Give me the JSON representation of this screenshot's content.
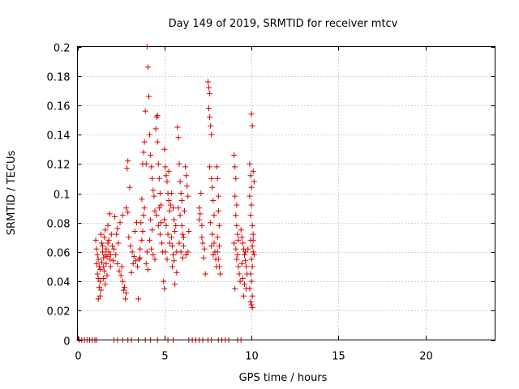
{
  "chart_data": {
    "type": "scatter",
    "title": "Day 149 of 2019, SRMTID for receiver mtcv",
    "xlabel": "GPS time / hours",
    "ylabel": "SRMTID / TECUs",
    "xlim": [
      0,
      24
    ],
    "ylim": [
      0,
      0.2
    ],
    "x_ticks": [
      0,
      5,
      10,
      15,
      20
    ],
    "x_tick_labels": [
      "0",
      "5",
      "10",
      "15",
      "20"
    ],
    "y_ticks": [
      0,
      0.02,
      0.04,
      0.06,
      0.08,
      0.1,
      0.12,
      0.14,
      0.16,
      0.18,
      0.2
    ],
    "y_tick_labels": [
      "0",
      "0.02",
      "0.04",
      "0.06",
      "0.08",
      "0.1",
      "0.12",
      "0.14",
      "0.16",
      "0.18",
      "0.2"
    ],
    "grid": true,
    "marker": "plus",
    "color": "#dd0000",
    "series": [
      {
        "name": "SRMTID",
        "points": [
          [
            0.1,
            0
          ],
          [
            0.25,
            0
          ],
          [
            0.4,
            0
          ],
          [
            0.55,
            0
          ],
          [
            0.7,
            0
          ],
          [
            0.85,
            0
          ],
          [
            1.0,
            0
          ],
          [
            1.1,
            0
          ],
          [
            2.1,
            0
          ],
          [
            2.3,
            0
          ],
          [
            2.6,
            0
          ],
          [
            2.9,
            0
          ],
          [
            3.1,
            0
          ],
          [
            3.5,
            0
          ],
          [
            3.9,
            0
          ],
          [
            4.2,
            0
          ],
          [
            4.6,
            0
          ],
          [
            5.2,
            0
          ],
          [
            5.5,
            0
          ],
          [
            6.4,
            0
          ],
          [
            6.6,
            0
          ],
          [
            6.8,
            0
          ],
          [
            7.0,
            0
          ],
          [
            7.2,
            0
          ],
          [
            7.5,
            0
          ],
          [
            7.7,
            0
          ],
          [
            8.1,
            0
          ],
          [
            8.3,
            0
          ],
          [
            8.5,
            0
          ],
          [
            8.7,
            0
          ],
          [
            9.2,
            0
          ],
          [
            9.4,
            0
          ],
          [
            1.05,
            0.068
          ],
          [
            1.1,
            0.062
          ],
          [
            1.15,
            0.058
          ],
          [
            1.2,
            0.055
          ],
          [
            1.1,
            0.052
          ],
          [
            1.25,
            0.05
          ],
          [
            1.3,
            0.048
          ],
          [
            1.15,
            0.045
          ],
          [
            1.2,
            0.042
          ],
          [
            1.3,
            0.04
          ],
          [
            1.25,
            0.036
          ],
          [
            1.3,
            0.03
          ],
          [
            1.2,
            0.028
          ],
          [
            1.35,
            0.034
          ],
          [
            1.35,
            0.072
          ],
          [
            1.4,
            0.066
          ],
          [
            1.45,
            0.06
          ],
          [
            1.5,
            0.056
          ],
          [
            1.4,
            0.053
          ],
          [
            1.5,
            0.05
          ],
          [
            1.55,
            0.047
          ],
          [
            1.6,
            0.058
          ],
          [
            1.45,
            0.064
          ],
          [
            1.55,
            0.07
          ],
          [
            1.6,
            0.075
          ],
          [
            1.65,
            0.062
          ],
          [
            1.7,
            0.057
          ],
          [
            1.65,
            0.052
          ],
          [
            1.75,
            0.066
          ],
          [
            1.8,
            0.06
          ],
          [
            1.85,
            0.055
          ],
          [
            1.9,
            0.05
          ],
          [
            1.8,
            0.068
          ],
          [
            1.95,
            0.072
          ],
          [
            2.0,
            0.064
          ],
          [
            1.9,
            0.058
          ],
          [
            2.05,
            0.054
          ],
          [
            1.75,
            0.078
          ],
          [
            1.85,
            0.086
          ],
          [
            1.7,
            0.044
          ],
          [
            1.6,
            0.038
          ],
          [
            1.5,
            0.042
          ],
          [
            2.1,
            0.062
          ],
          [
            2.2,
            0.058
          ],
          [
            2.3,
            0.052
          ],
          [
            2.4,
            0.047
          ],
          [
            2.5,
            0.044
          ],
          [
            2.6,
            0.04
          ],
          [
            2.7,
            0.036
          ],
          [
            2.8,
            0.032
          ],
          [
            2.75,
            0.028
          ],
          [
            2.65,
            0.034
          ],
          [
            2.55,
            0.05
          ],
          [
            2.35,
            0.066
          ],
          [
            2.25,
            0.072
          ],
          [
            2.45,
            0.08
          ],
          [
            2.6,
            0.085
          ],
          [
            2.8,
            0.09
          ],
          [
            2.9,
            0.087
          ],
          [
            2.3,
            0.076
          ],
          [
            2.15,
            0.084
          ],
          [
            2.9,
            0.122
          ],
          [
            2.85,
            0.117
          ],
          [
            3.0,
            0.104
          ],
          [
            2.95,
            0.07
          ],
          [
            3.05,
            0.064
          ],
          [
            3.15,
            0.06
          ],
          [
            3.25,
            0.057
          ],
          [
            3.35,
            0.054
          ],
          [
            3.45,
            0.05
          ],
          [
            3.1,
            0.046
          ],
          [
            3.2,
            0.052
          ],
          [
            3.3,
            0.074
          ],
          [
            3.4,
            0.08
          ],
          [
            3.5,
            0.028
          ],
          [
            3.55,
            0.055
          ],
          [
            3.6,
            0.062
          ],
          [
            3.7,
            0.068
          ],
          [
            3.75,
            0.074
          ],
          [
            3.65,
            0.08
          ],
          [
            3.8,
            0.085
          ],
          [
            3.85,
            0.09
          ],
          [
            3.7,
            0.096
          ],
          [
            3.75,
            0.12
          ],
          [
            3.8,
            0.128
          ],
          [
            3.85,
            0.135
          ],
          [
            3.9,
            0.156
          ],
          [
            3.95,
            0.12
          ],
          [
            4.0,
            0.06
          ],
          [
            3.95,
            0.052
          ],
          [
            4.05,
            0.048
          ],
          [
            3.6,
            0.056
          ],
          [
            4.0,
            0.2
          ],
          [
            4.05,
            0.186
          ],
          [
            4.1,
            0.166
          ],
          [
            4.15,
            0.14
          ],
          [
            4.2,
            0.126
          ],
          [
            4.25,
            0.118
          ],
          [
            4.3,
            0.11
          ],
          [
            4.35,
            0.102
          ],
          [
            4.4,
            0.098
          ],
          [
            4.45,
            0.088
          ],
          [
            4.2,
            0.082
          ],
          [
            4.3,
            0.075
          ],
          [
            4.15,
            0.068
          ],
          [
            4.25,
            0.062
          ],
          [
            4.35,
            0.058
          ],
          [
            4.45,
            0.055
          ],
          [
            4.5,
            0.144
          ],
          [
            4.55,
            0.152
          ],
          [
            4.6,
            0.135
          ],
          [
            4.65,
            0.12
          ],
          [
            4.7,
            0.11
          ],
          [
            4.75,
            0.1
          ],
          [
            4.8,
            0.092
          ],
          [
            4.55,
            0.085
          ],
          [
            4.65,
            0.078
          ],
          [
            4.75,
            0.072
          ],
          [
            4.85,
            0.066
          ],
          [
            4.9,
            0.06
          ],
          [
            4.6,
            0.153
          ],
          [
            4.8,
            0.08
          ],
          [
            4.7,
            0.09
          ],
          [
            5.0,
            0.13
          ],
          [
            5.05,
            0.118
          ],
          [
            5.1,
            0.112
          ],
          [
            5.15,
            0.108
          ],
          [
            5.2,
            0.1
          ],
          [
            5.25,
            0.095
          ],
          [
            5.3,
            0.088
          ],
          [
            5.0,
            0.082
          ],
          [
            5.1,
            0.078
          ],
          [
            5.2,
            0.072
          ],
          [
            5.3,
            0.066
          ],
          [
            5.05,
            0.06
          ],
          [
            5.15,
            0.055
          ],
          [
            4.95,
            0.04
          ],
          [
            5.0,
            0.035
          ],
          [
            5.25,
            0.115
          ],
          [
            5.35,
            0.092
          ],
          [
            5.4,
            0.07
          ],
          [
            5.45,
            0.064
          ],
          [
            5.5,
            0.058
          ],
          [
            5.55,
            0.054
          ],
          [
            5.6,
            0.074
          ],
          [
            5.65,
            0.078
          ],
          [
            5.7,
            0.06
          ],
          [
            5.45,
            0.05
          ],
          [
            5.6,
            0.038
          ],
          [
            5.7,
            0.046
          ],
          [
            5.55,
            0.082
          ],
          [
            5.4,
            0.1
          ],
          [
            5.5,
            0.09
          ],
          [
            5.75,
            0.145
          ],
          [
            5.8,
            0.138
          ],
          [
            5.85,
            0.12
          ],
          [
            5.9,
            0.108
          ],
          [
            5.95,
            0.1
          ],
          [
            6.0,
            0.095
          ],
          [
            5.8,
            0.09
          ],
          [
            5.9,
            0.085
          ],
          [
            6.0,
            0.078
          ],
          [
            6.05,
            0.072
          ],
          [
            5.85,
            0.066
          ],
          [
            5.95,
            0.06
          ],
          [
            6.05,
            0.056
          ],
          [
            6.1,
            0.064
          ],
          [
            6.15,
            0.088
          ],
          [
            6.2,
            0.118
          ],
          [
            6.25,
            0.112
          ],
          [
            6.3,
            0.105
          ],
          [
            6.35,
            0.098
          ],
          [
            6.1,
            0.07
          ],
          [
            6.25,
            0.058
          ],
          [
            6.35,
            0.06
          ],
          [
            6.4,
            0.074
          ],
          [
            7.0,
            0.09
          ],
          [
            7.05,
            0.086
          ],
          [
            7.1,
            0.1
          ],
          [
            7.0,
            0.082
          ],
          [
            7.15,
            0.078
          ],
          [
            7.2,
            0.066
          ],
          [
            7.3,
            0.062
          ],
          [
            7.25,
            0.056
          ],
          [
            7.35,
            0.045
          ],
          [
            7.15,
            0.07
          ],
          [
            7.5,
            0.176
          ],
          [
            7.55,
            0.172
          ],
          [
            7.6,
            0.168
          ],
          [
            7.55,
            0.158
          ],
          [
            7.6,
            0.152
          ],
          [
            7.65,
            0.146
          ],
          [
            7.7,
            0.14
          ],
          [
            7.6,
            0.118
          ],
          [
            7.7,
            0.11
          ],
          [
            7.75,
            0.104
          ],
          [
            7.8,
            0.095
          ],
          [
            7.85,
            0.085
          ],
          [
            7.65,
            0.08
          ],
          [
            7.75,
            0.072
          ],
          [
            7.85,
            0.066
          ],
          [
            7.9,
            0.06
          ],
          [
            7.95,
            0.055
          ],
          [
            8.0,
            0.05
          ],
          [
            7.7,
            0.064
          ],
          [
            7.8,
            0.058
          ],
          [
            8.0,
            0.118
          ],
          [
            8.05,
            0.11
          ],
          [
            8.1,
            0.098
          ],
          [
            8.1,
            0.088
          ],
          [
            8.15,
            0.078
          ],
          [
            8.05,
            0.07
          ],
          [
            8.15,
            0.064
          ],
          [
            8.1,
            0.055
          ],
          [
            8.15,
            0.05
          ],
          [
            8.2,
            0.045
          ],
          [
            8.05,
            0.06
          ],
          [
            9.0,
            0.126
          ],
          [
            9.05,
            0.118
          ],
          [
            9.1,
            0.11
          ],
          [
            9.05,
            0.098
          ],
          [
            9.15,
            0.092
          ],
          [
            9.1,
            0.085
          ],
          [
            9.15,
            0.078
          ],
          [
            9.2,
            0.072
          ],
          [
            9.25,
            0.068
          ],
          [
            9.0,
            0.066
          ],
          [
            9.1,
            0.062
          ],
          [
            9.2,
            0.058
          ],
          [
            9.15,
            0.055
          ],
          [
            9.25,
            0.05
          ],
          [
            9.3,
            0.045
          ],
          [
            9.35,
            0.04
          ],
          [
            9.05,
            0.035
          ],
          [
            9.4,
            0.075
          ],
          [
            9.45,
            0.07
          ],
          [
            9.5,
            0.066
          ],
          [
            9.55,
            0.062
          ],
          [
            9.6,
            0.058
          ],
          [
            9.65,
            0.054
          ],
          [
            9.7,
            0.05
          ],
          [
            9.75,
            0.045
          ],
          [
            9.5,
            0.042
          ],
          [
            9.6,
            0.038
          ],
          [
            9.7,
            0.035
          ],
          [
            9.55,
            0.03
          ],
          [
            9.45,
            0.052
          ],
          [
            9.65,
            0.06
          ],
          [
            9.8,
            0.062
          ],
          [
            9.9,
            0.12
          ],
          [
            9.95,
            0.112
          ],
          [
            10.0,
            0.104
          ],
          [
            9.9,
            0.098
          ],
          [
            10.0,
            0.092
          ],
          [
            9.95,
            0.085
          ],
          [
            10.05,
            0.078
          ],
          [
            10.1,
            0.072
          ],
          [
            9.95,
            0.068
          ],
          [
            10.05,
            0.064
          ],
          [
            10.1,
            0.06
          ],
          [
            10.0,
            0.055
          ],
          [
            10.05,
            0.05
          ],
          [
            9.95,
            0.045
          ],
          [
            10.0,
            0.04
          ],
          [
            9.9,
            0.035
          ],
          [
            10.05,
            0.03
          ],
          [
            9.95,
            0.026
          ],
          [
            10.0,
            0.024
          ],
          [
            10.05,
            0.022
          ],
          [
            10.0,
            0.154
          ],
          [
            10.05,
            0.146
          ],
          [
            10.1,
            0.115
          ],
          [
            10.15,
            0.108
          ],
          [
            10.1,
            0.068
          ],
          [
            10.15,
            0.058
          ]
        ]
      }
    ]
  }
}
